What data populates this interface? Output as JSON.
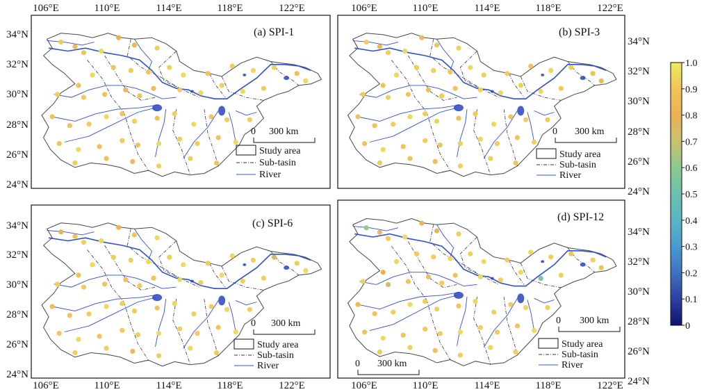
{
  "figure": {
    "lon_ticks": [
      "106°E",
      "110°E",
      "114°E",
      "118°E",
      "122°E"
    ],
    "lat_ticks": [
      "24°N",
      "26°N",
      "28°N",
      "30°N",
      "32°N",
      "34°N"
    ],
    "colorbar": {
      "ticks": [
        "0",
        "0.1",
        "0.2",
        "0.3",
        "0.4",
        "0.5",
        "0.6",
        "0.7",
        "0.8",
        "0.9",
        "1.0"
      ],
      "colormap": [
        "#0d1470",
        "#2f3fa0",
        "#3f72c0",
        "#4a9ad0",
        "#5bb5c5",
        "#6dbfae",
        "#8bc98f",
        "#c8c270",
        "#eeb055",
        "#f0c45a",
        "#ecec60"
      ]
    },
    "legend": {
      "study_area": "Study area",
      "sub_basin": "Sub-tasin",
      "river": "River"
    },
    "scale_bar": {
      "zero": "0",
      "label": "300 km"
    },
    "panels": [
      {
        "id": "a",
        "label": "(a) SPI-1"
      },
      {
        "id": "b",
        "label": "(b) SPI-3"
      },
      {
        "id": "c",
        "label": "(c) SPI-6"
      },
      {
        "id": "d",
        "label": "(d) SPI-12"
      }
    ],
    "stations": {
      "lonlat": [
        [
          107.0,
          33.7
        ],
        [
          107.8,
          33.4
        ],
        [
          108.3,
          33.0
        ],
        [
          109.3,
          33.1
        ],
        [
          110.3,
          34.0
        ],
        [
          111.2,
          33.5
        ],
        [
          112.5,
          33.3
        ],
        [
          108.0,
          30.8
        ],
        [
          108.8,
          31.5
        ],
        [
          110.0,
          32.0
        ],
        [
          111.0,
          31.8
        ],
        [
          112.0,
          31.7
        ],
        [
          113.2,
          32.0
        ],
        [
          114.0,
          31.5
        ],
        [
          115.4,
          31.6
        ],
        [
          116.8,
          32.1
        ],
        [
          118.0,
          31.8
        ],
        [
          119.2,
          32.0
        ],
        [
          120.5,
          31.6
        ],
        [
          121.0,
          31.1
        ],
        [
          106.8,
          30.2
        ],
        [
          108.3,
          30.0
        ],
        [
          109.5,
          30.2
        ],
        [
          110.7,
          30.5
        ],
        [
          111.5,
          30.1
        ],
        [
          112.3,
          30.6
        ],
        [
          113.8,
          30.5
        ],
        [
          115.0,
          30.3
        ],
        [
          116.2,
          30.8
        ],
        [
          117.4,
          30.4
        ],
        [
          118.6,
          30.6
        ],
        [
          106.5,
          28.7
        ],
        [
          107.5,
          28.1
        ],
        [
          108.6,
          28.2
        ],
        [
          109.6,
          28.7
        ],
        [
          110.5,
          28.9
        ],
        [
          111.2,
          28.4
        ],
        [
          112.5,
          28.6
        ],
        [
          113.5,
          28.9
        ],
        [
          114.6,
          28.2
        ],
        [
          115.6,
          28.7
        ],
        [
          116.5,
          28.5
        ],
        [
          117.8,
          28.5
        ],
        [
          106.9,
          26.9
        ],
        [
          108.0,
          26.5
        ],
        [
          109.2,
          26.7
        ],
        [
          110.5,
          27.1
        ],
        [
          111.4,
          26.8
        ],
        [
          112.6,
          26.9
        ],
        [
          113.8,
          27.2
        ],
        [
          114.8,
          26.9
        ],
        [
          116.0,
          27.3
        ],
        [
          117.0,
          27.0
        ],
        [
          107.8,
          25.6
        ],
        [
          109.6,
          25.9
        ],
        [
          111.1,
          25.7
        ],
        [
          112.6,
          25.4
        ],
        [
          114.4,
          25.9
        ],
        [
          115.9,
          25.6
        ]
      ],
      "values": {
        "a": [
          0.92,
          0.85,
          0.9,
          0.95,
          0.8,
          0.82,
          0.93,
          0.88,
          0.95,
          0.9,
          0.92,
          0.9,
          0.93,
          0.95,
          0.9,
          0.92,
          0.95,
          0.93,
          0.88,
          0.95,
          0.93,
          0.92,
          0.9,
          0.83,
          0.9,
          0.86,
          0.92,
          0.95,
          0.93,
          0.95,
          0.92,
          0.88,
          0.9,
          0.92,
          0.95,
          0.9,
          0.93,
          0.88,
          0.92,
          0.95,
          0.9,
          0.93,
          0.92,
          0.9,
          0.95,
          0.88,
          0.92,
          0.9,
          0.95,
          0.93,
          0.92,
          0.9,
          0.95,
          0.92,
          0.88,
          0.86,
          0.93,
          0.92,
          0.9
        ],
        "b": [
          0.93,
          0.83,
          0.92,
          0.95,
          0.85,
          0.9,
          0.93,
          0.9,
          0.95,
          0.92,
          0.93,
          0.9,
          0.95,
          0.93,
          0.92,
          0.9,
          0.95,
          0.93,
          0.88,
          0.85,
          0.92,
          0.93,
          0.9,
          0.86,
          0.92,
          0.9,
          0.93,
          0.95,
          0.93,
          0.95,
          0.92,
          0.88,
          0.9,
          0.93,
          0.95,
          0.92,
          0.93,
          0.88,
          0.92,
          0.95,
          0.9,
          0.93,
          0.92,
          0.9,
          0.95,
          0.9,
          0.92,
          0.9,
          0.93,
          0.95,
          0.92,
          0.9,
          0.93,
          0.92,
          0.9,
          0.86,
          0.93,
          0.92,
          0.9
        ],
        "c": [
          0.78,
          0.9,
          0.93,
          0.95,
          0.83,
          0.9,
          0.95,
          0.88,
          0.95,
          0.92,
          0.93,
          0.95,
          0.93,
          0.95,
          0.92,
          0.95,
          0.93,
          0.75,
          0.92,
          0.95,
          0.93,
          0.92,
          0.9,
          0.88,
          0.92,
          0.9,
          0.95,
          0.93,
          0.95,
          0.92,
          0.93,
          0.86,
          0.9,
          0.93,
          0.95,
          0.92,
          0.93,
          0.9,
          0.95,
          0.93,
          0.92,
          0.95,
          0.93,
          0.9,
          0.95,
          0.9,
          0.92,
          0.93,
          0.95,
          0.93,
          0.92,
          0.9,
          0.95,
          0.92,
          0.93,
          0.85,
          0.93,
          0.95,
          0.92
        ],
        "d": [
          0.62,
          0.85,
          0.92,
          0.95,
          0.82,
          0.78,
          0.93,
          0.8,
          0.95,
          0.92,
          0.93,
          0.95,
          0.93,
          0.95,
          0.92,
          0.95,
          0.93,
          0.9,
          0.92,
          0.88,
          0.93,
          0.75,
          0.9,
          0.88,
          0.92,
          0.9,
          0.95,
          0.93,
          0.95,
          0.55,
          0.93,
          0.86,
          0.9,
          0.93,
          0.95,
          0.92,
          0.93,
          0.9,
          0.95,
          0.93,
          0.92,
          0.95,
          0.93,
          0.9,
          0.95,
          0.9,
          0.92,
          0.93,
          0.95,
          0.93,
          0.92,
          0.9,
          0.95,
          0.92,
          0.93,
          0.88,
          0.93,
          0.95,
          0.92
        ]
      }
    }
  }
}
